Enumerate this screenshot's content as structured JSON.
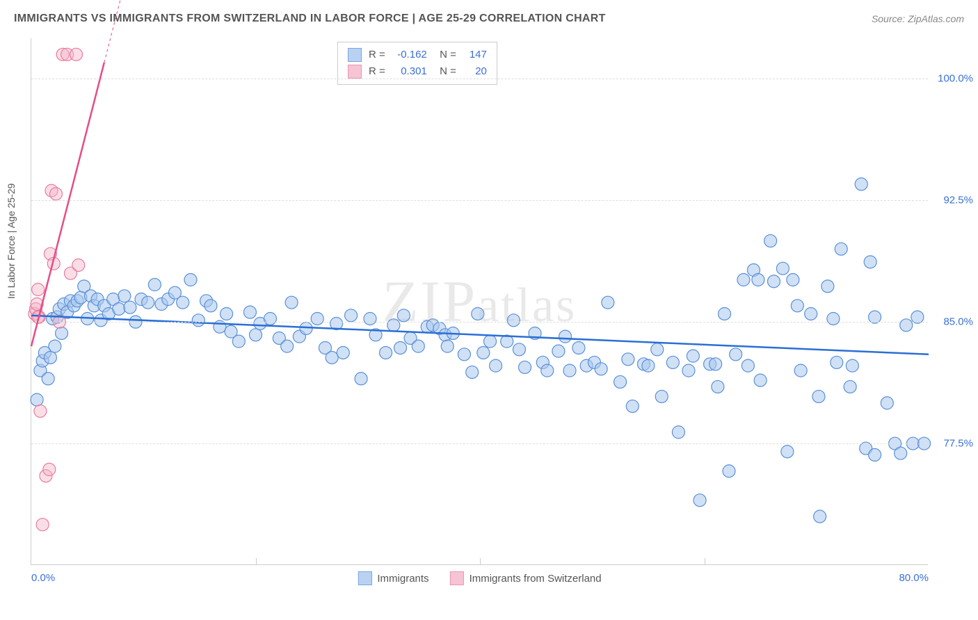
{
  "title": "IMMIGRANTS VS IMMIGRANTS FROM SWITZERLAND IN LABOR FORCE | AGE 25-29 CORRELATION CHART",
  "source": "Source: ZipAtlas.com",
  "ylabel": "In Labor Force | Age 25-29",
  "watermark": "ZIPatlas",
  "chart": {
    "type": "scatter",
    "background_color": "#ffffff",
    "grid_color": "#dddddd",
    "axis_color": "#cccccc",
    "xlim": [
      0,
      80
    ],
    "ylim": [
      70,
      102.5
    ],
    "xticks": [
      0,
      80
    ],
    "xtick_labels": [
      "0.0%",
      "80.0%"
    ],
    "xtick_minor": [
      20,
      40,
      60
    ],
    "yticks": [
      77.5,
      85.0,
      92.5,
      100.0
    ],
    "ytick_labels": [
      "77.5%",
      "85.0%",
      "92.5%",
      "100.0%"
    ],
    "marker_radius": 9,
    "marker_stroke_width": 1.2,
    "trend_line_width_solid": 2.5,
    "trend_line_width_dashed": 1
  },
  "series": [
    {
      "name": "Immigrants",
      "label": "Immigrants",
      "fill": "#a9c8ef",
      "stroke": "#5a8fd8",
      "fill_opacity": 0.55,
      "r_value": "-0.162",
      "n_value": "147",
      "trend": {
        "x1": 0,
        "y1": 85.4,
        "x2": 80,
        "y2": 83.0,
        "color": "#2a6fd6"
      },
      "points": [
        [
          0.5,
          80.2
        ],
        [
          0.8,
          82.0
        ],
        [
          1.0,
          82.6
        ],
        [
          1.2,
          83.1
        ],
        [
          1.5,
          81.5
        ],
        [
          1.7,
          82.8
        ],
        [
          1.9,
          85.2
        ],
        [
          2.1,
          83.5
        ],
        [
          2.3,
          85.3
        ],
        [
          2.5,
          85.8
        ],
        [
          2.7,
          84.3
        ],
        [
          2.9,
          86.1
        ],
        [
          3.2,
          85.6
        ],
        [
          3.5,
          86.3
        ],
        [
          3.8,
          86.0
        ],
        [
          4.1,
          86.3
        ],
        [
          4.4,
          86.5
        ],
        [
          4.7,
          87.2
        ],
        [
          5.0,
          85.2
        ],
        [
          5.3,
          86.6
        ],
        [
          5.6,
          86.0
        ],
        [
          5.9,
          86.4
        ],
        [
          6.2,
          85.1
        ],
        [
          6.5,
          86.0
        ],
        [
          6.9,
          85.5
        ],
        [
          7.3,
          86.4
        ],
        [
          7.8,
          85.8
        ],
        [
          8.3,
          86.6
        ],
        [
          8.8,
          85.9
        ],
        [
          9.3,
          85.0
        ],
        [
          9.8,
          86.4
        ],
        [
          10.4,
          86.2
        ],
        [
          11.0,
          87.3
        ],
        [
          11.6,
          86.1
        ],
        [
          12.2,
          86.4
        ],
        [
          12.8,
          86.8
        ],
        [
          13.5,
          86.2
        ],
        [
          14.2,
          87.6
        ],
        [
          14.9,
          85.1
        ],
        [
          15.6,
          86.3
        ],
        [
          16.0,
          86.0
        ],
        [
          16.8,
          84.7
        ],
        [
          17.4,
          85.5
        ],
        [
          17.8,
          84.4
        ],
        [
          18.5,
          83.8
        ],
        [
          19.5,
          85.6
        ],
        [
          20.0,
          84.2
        ],
        [
          20.4,
          84.9
        ],
        [
          21.3,
          85.2
        ],
        [
          22.1,
          84.0
        ],
        [
          22.8,
          83.5
        ],
        [
          23.2,
          86.2
        ],
        [
          23.9,
          84.1
        ],
        [
          24.5,
          84.6
        ],
        [
          25.5,
          85.2
        ],
        [
          26.2,
          83.4
        ],
        [
          26.8,
          82.8
        ],
        [
          27.2,
          84.9
        ],
        [
          27.8,
          83.1
        ],
        [
          28.5,
          85.4
        ],
        [
          29.4,
          81.5
        ],
        [
          30.2,
          85.2
        ],
        [
          30.7,
          84.2
        ],
        [
          31.6,
          83.1
        ],
        [
          32.3,
          84.8
        ],
        [
          32.9,
          83.4
        ],
        [
          33.2,
          85.4
        ],
        [
          33.8,
          84.0
        ],
        [
          34.5,
          83.5
        ],
        [
          35.3,
          84.7
        ],
        [
          35.8,
          84.8
        ],
        [
          36.4,
          84.6
        ],
        [
          36.9,
          84.2
        ],
        [
          37.1,
          83.5
        ],
        [
          37.6,
          84.3
        ],
        [
          38.6,
          83.0
        ],
        [
          39.3,
          81.9
        ],
        [
          39.8,
          85.5
        ],
        [
          40.3,
          83.1
        ],
        [
          40.9,
          83.8
        ],
        [
          41.4,
          82.3
        ],
        [
          42.4,
          83.8
        ],
        [
          43.0,
          85.1
        ],
        [
          43.5,
          83.3
        ],
        [
          44.0,
          82.2
        ],
        [
          44.9,
          84.3
        ],
        [
          45.6,
          82.5
        ],
        [
          46.0,
          82.0
        ],
        [
          47.0,
          83.2
        ],
        [
          47.6,
          84.1
        ],
        [
          48.0,
          82.0
        ],
        [
          48.8,
          83.4
        ],
        [
          49.5,
          82.3
        ],
        [
          50.2,
          82.5
        ],
        [
          50.8,
          82.1
        ],
        [
          51.4,
          86.2
        ],
        [
          52.5,
          81.3
        ],
        [
          53.2,
          82.7
        ],
        [
          53.6,
          79.8
        ],
        [
          54.6,
          82.4
        ],
        [
          55.0,
          82.3
        ],
        [
          55.8,
          83.3
        ],
        [
          56.2,
          80.4
        ],
        [
          57.2,
          82.5
        ],
        [
          57.7,
          78.2
        ],
        [
          58.6,
          82.0
        ],
        [
          59.0,
          82.9
        ],
        [
          59.6,
          74.0
        ],
        [
          60.5,
          82.4
        ],
        [
          61.2,
          81.0
        ],
        [
          61.8,
          85.5
        ],
        [
          62.2,
          75.8
        ],
        [
          62.8,
          83.0
        ],
        [
          63.5,
          87.6
        ],
        [
          63.9,
          82.3
        ],
        [
          64.4,
          88.2
        ],
        [
          64.8,
          87.6
        ],
        [
          65.0,
          81.4
        ],
        [
          65.9,
          90.0
        ],
        [
          66.2,
          87.5
        ],
        [
          67.0,
          88.3
        ],
        [
          67.4,
          77.0
        ],
        [
          67.9,
          87.6
        ],
        [
          68.3,
          86.0
        ],
        [
          68.6,
          82.0
        ],
        [
          69.5,
          85.5
        ],
        [
          70.2,
          80.4
        ],
        [
          70.3,
          73.0
        ],
        [
          71.0,
          87.2
        ],
        [
          71.5,
          85.2
        ],
        [
          71.8,
          82.5
        ],
        [
          72.2,
          89.5
        ],
        [
          73.0,
          81.0
        ],
        [
          74.0,
          93.5
        ],
        [
          74.4,
          77.2
        ],
        [
          74.8,
          88.7
        ],
        [
          75.2,
          76.8
        ],
        [
          75.2,
          85.3
        ],
        [
          76.3,
          80.0
        ],
        [
          77.0,
          77.5
        ],
        [
          77.5,
          76.9
        ],
        [
          78.0,
          84.8
        ],
        [
          78.6,
          77.5
        ],
        [
          79.0,
          85.3
        ],
        [
          79.6,
          77.5
        ],
        [
          61.0,
          82.4
        ],
        [
          73.2,
          82.3
        ]
      ]
    },
    {
      "name": "Immigrants from Switzerland",
      "label": "Immigrants from Switzerland",
      "fill": "#f5b6c7",
      "stroke": "#e87ba0",
      "fill_opacity": 0.45,
      "r_value": "0.301",
      "n_value": "20",
      "trend": {
        "x1": 0,
        "y1": 83.5,
        "x2": 6.5,
        "y2": 101.0,
        "color": "#e54d85",
        "dashed_to_x": 12
      },
      "points": [
        [
          0.3,
          85.5
        ],
        [
          0.4,
          85.8
        ],
        [
          0.5,
          86.1
        ],
        [
          0.6,
          87.0
        ],
        [
          0.7,
          85.3
        ],
        [
          0.8,
          79.5
        ],
        [
          1.0,
          72.5
        ],
        [
          1.3,
          75.5
        ],
        [
          1.6,
          75.9
        ],
        [
          1.7,
          89.2
        ],
        [
          1.8,
          93.1
        ],
        [
          2.0,
          88.6
        ],
        [
          2.2,
          92.9
        ],
        [
          2.5,
          85.0
        ],
        [
          2.8,
          101.5
        ],
        [
          3.2,
          101.5
        ],
        [
          3.5,
          88.0
        ],
        [
          4.0,
          101.5
        ],
        [
          4.2,
          88.5
        ],
        [
          0.6,
          85.3
        ]
      ]
    }
  ],
  "legend_bottom": [
    {
      "label": "Immigrants",
      "fill": "#a9c8ef",
      "stroke": "#5a8fd8"
    },
    {
      "label": "Immigrants from Switzerland",
      "fill": "#f5b6c7",
      "stroke": "#e87ba0"
    }
  ]
}
